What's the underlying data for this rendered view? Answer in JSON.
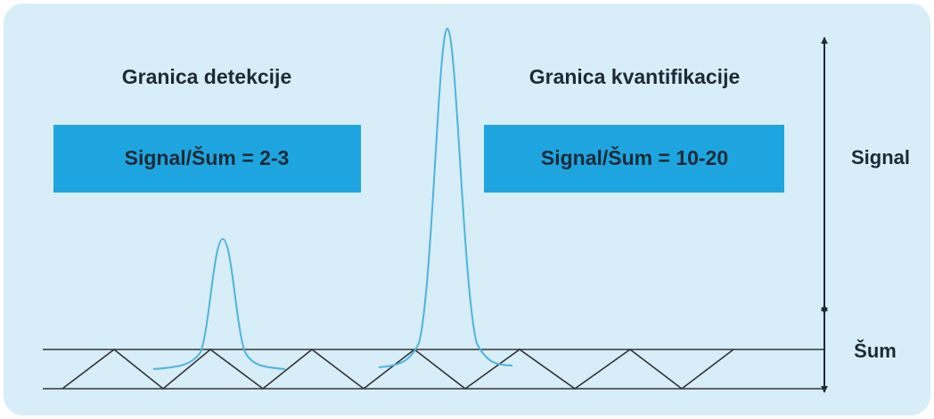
{
  "left": {
    "title": "Granica detekcije",
    "ratio": "Signal/Šum = 2-3"
  },
  "right": {
    "title": "Granica kvantifikacije",
    "ratio": "Signal/Šum = 10-20"
  },
  "axis": {
    "signal": "Signal",
    "noise": "Šum"
  }
}
